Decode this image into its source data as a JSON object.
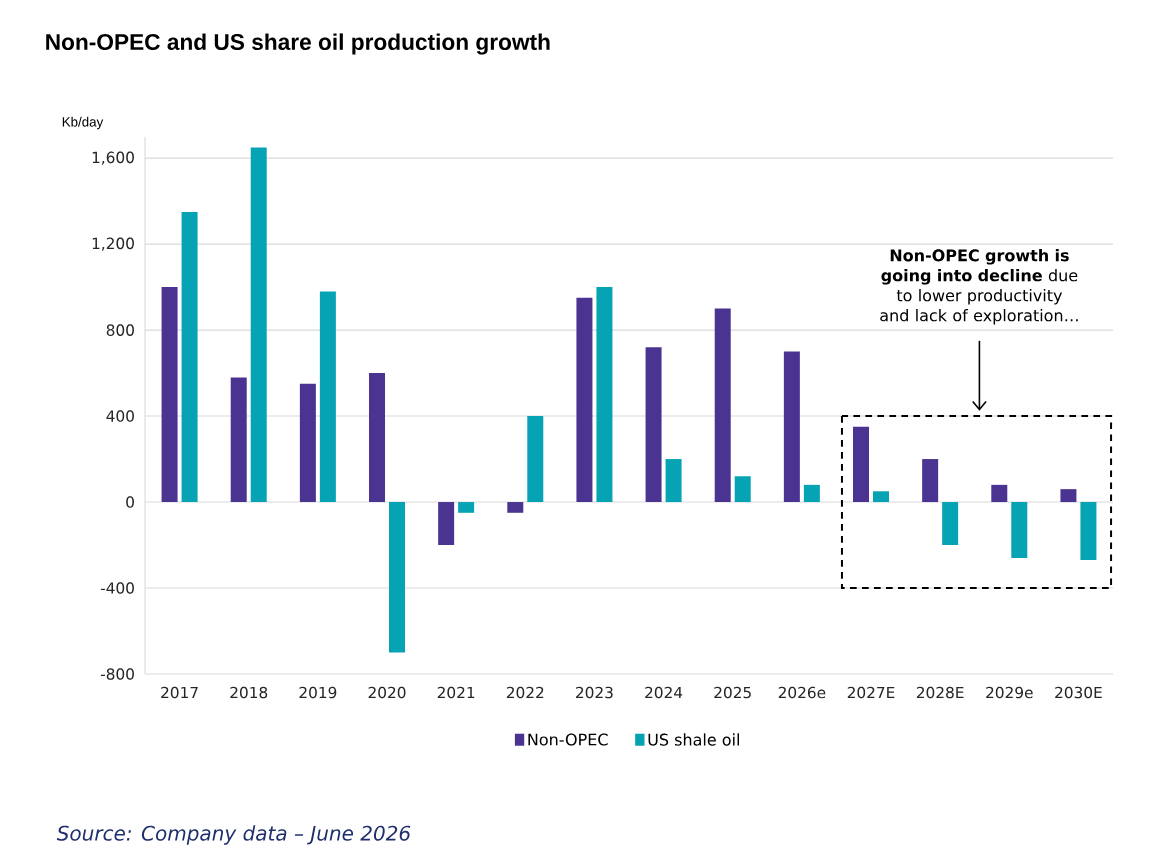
{
  "chart_data": {
    "type": "bar",
    "title": "Non-OPEC and US share oil production growth",
    "ylabel": "Kb/day",
    "categories": [
      "2017",
      "2018",
      "2019",
      "2020",
      "2021",
      "2022",
      "2023",
      "2024",
      "2025",
      "2026e",
      "2027E",
      "2028E",
      "2029e",
      "2030E"
    ],
    "series": [
      {
        "name": "Non-OPEC",
        "color": "#4b3391",
        "values": [
          1000,
          580,
          550,
          600,
          -200,
          -50,
          950,
          720,
          900,
          700,
          350,
          200,
          80,
          60
        ]
      },
      {
        "name": "US shale oil",
        "color": "#05a3b3",
        "values": [
          1350,
          1650,
          980,
          -700,
          -50,
          400,
          1000,
          200,
          120,
          80,
          50,
          -200,
          -260,
          -270
        ]
      }
    ],
    "ylim": [
      -800,
      1700
    ],
    "yticks": [
      -800,
      -400,
      0,
      400,
      800,
      {
        "value": 1200,
        "label": "1,200"
      },
      {
        "value": 1600,
        "label": "1,600"
      }
    ],
    "grid": "y",
    "legend": "bottom",
    "annotations": [
      "**Non-OPEC growth is going into decline** due to lower productivity and lack of exploration…",
      "Source: Company data – June 2026"
    ]
  }
}
